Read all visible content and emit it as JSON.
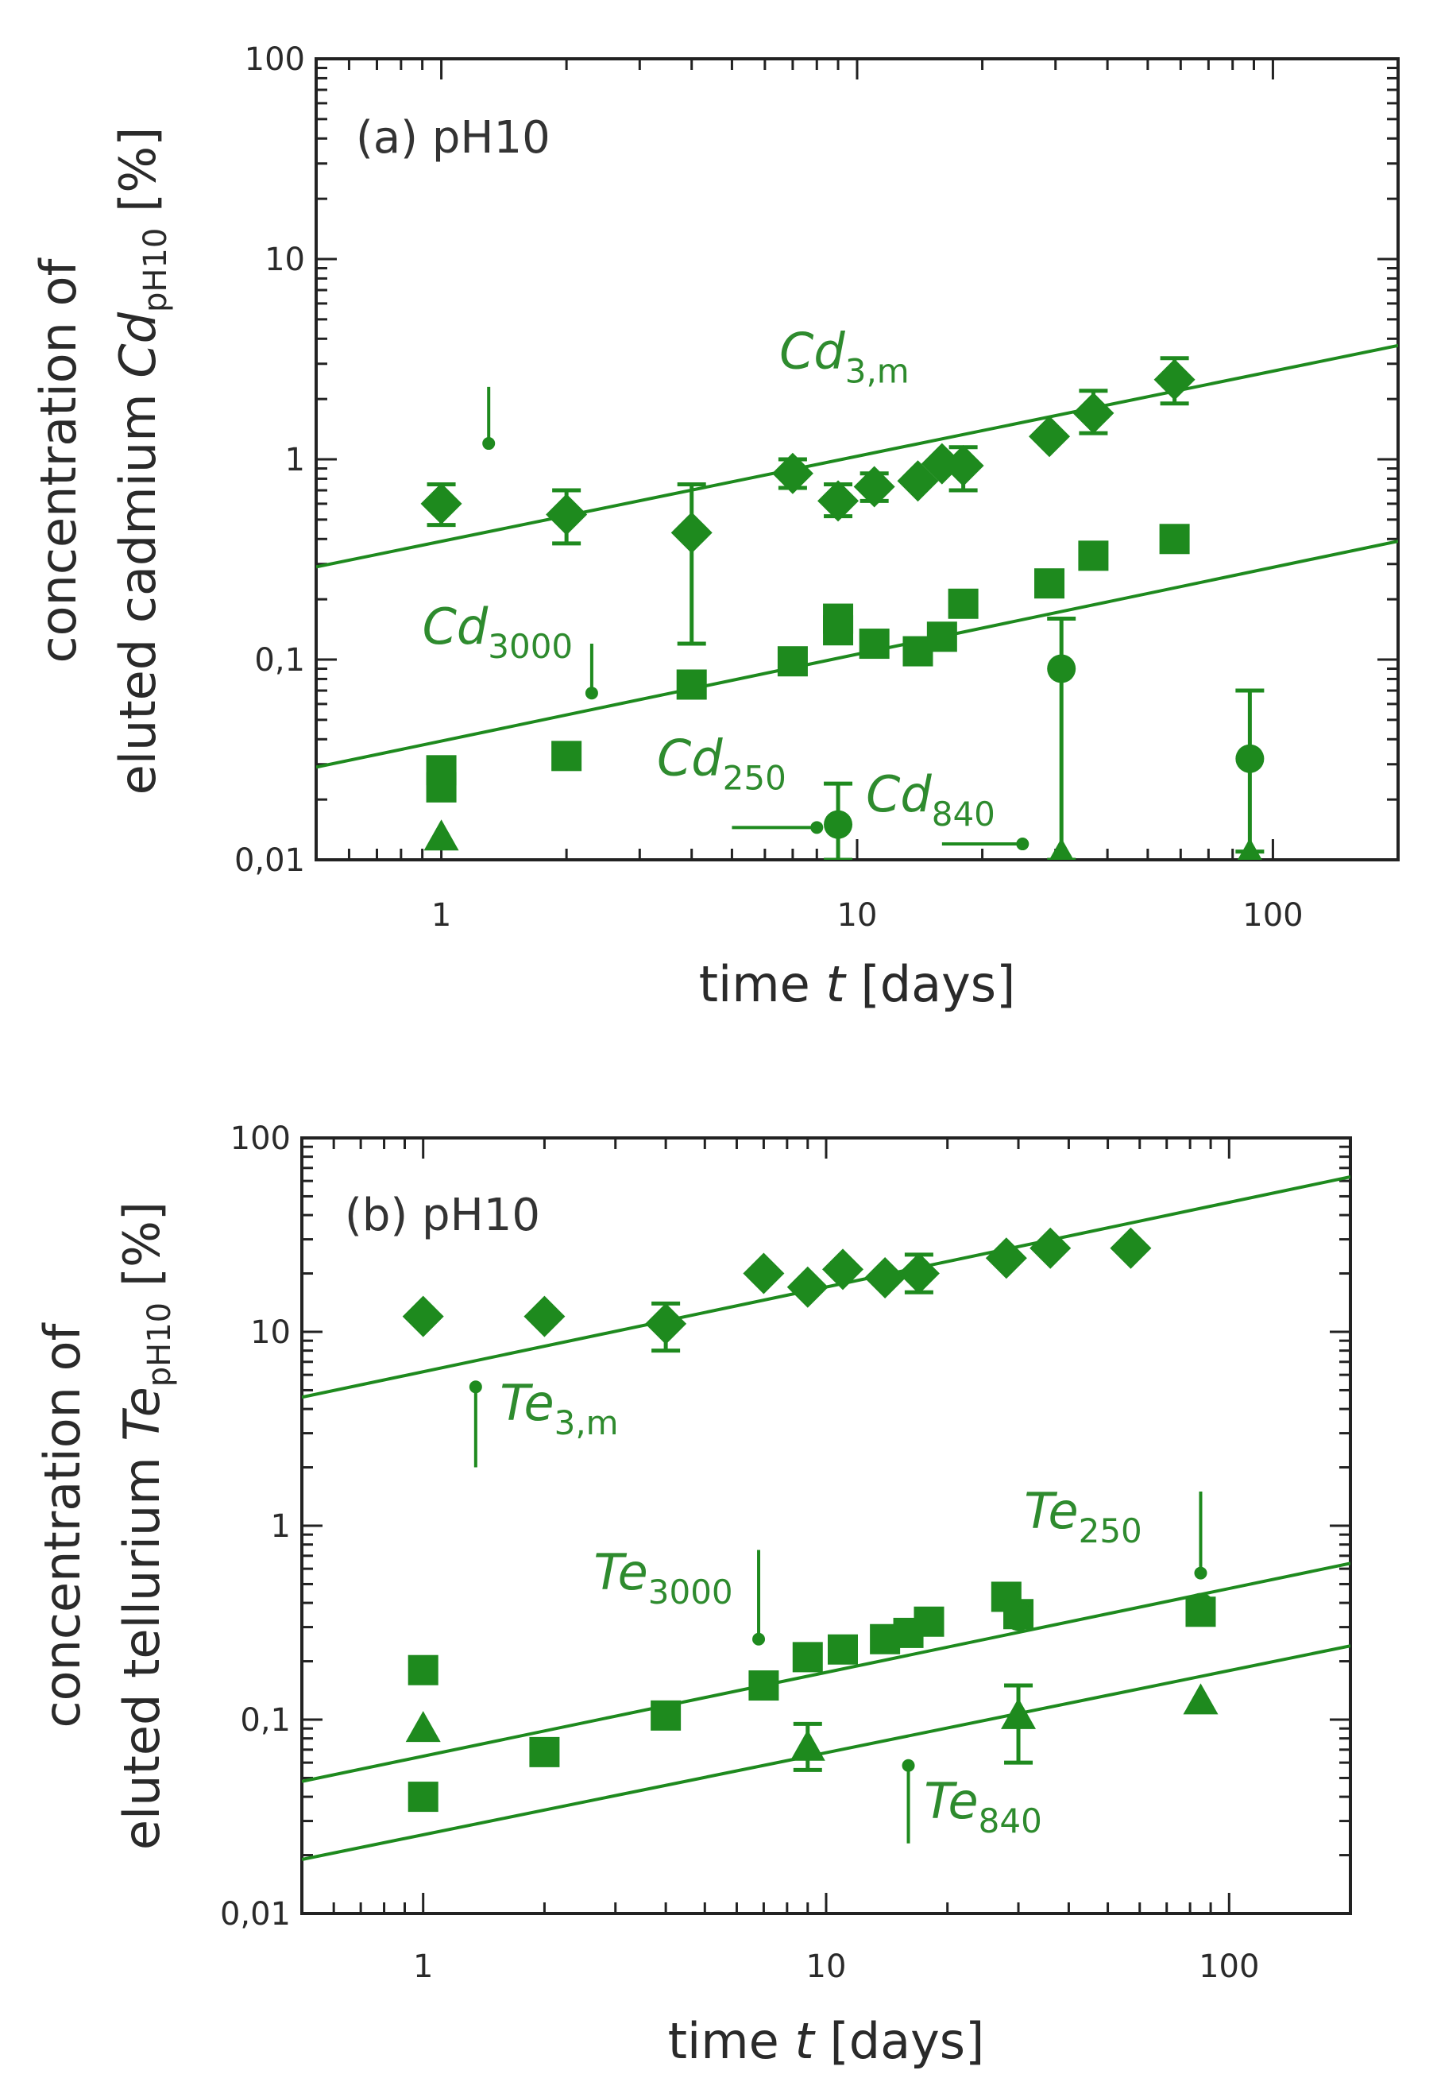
{
  "colors": {
    "series": "#1e8a1e",
    "annotation": "#2e8b2e",
    "axis": "#222222",
    "text": "#2a2a2a"
  },
  "chart_data": [
    {
      "type": "scatter",
      "scale": "log-log",
      "title": "(a) pH10",
      "xlabel": "time t [days]",
      "ylabel_line1": "concentration of",
      "ylabel_line2_prefix": "eluted cadmium Cd",
      "ylabel_line2_sub": "pH10",
      "ylabel_line2_suffix": " [%]",
      "xlim": [
        0.5,
        200
      ],
      "ylim": [
        0.01,
        100
      ],
      "xticks": [
        1,
        10,
        100
      ],
      "xtick_labels": [
        "1",
        "10",
        "100"
      ],
      "yticks": [
        0.01,
        0.1,
        1,
        10,
        100
      ],
      "ytick_labels": [
        "0,01",
        "0,1",
        "1",
        "10",
        "100"
      ],
      "series": [
        {
          "name": "Cd3,m",
          "marker": "diamond",
          "points": [
            {
              "x": 1.0,
              "y": 0.6,
              "lo": 0.47,
              "hi": 0.75
            },
            {
              "x": 2.0,
              "y": 0.53,
              "lo": 0.38,
              "hi": 0.7
            },
            {
              "x": 4.0,
              "y": 0.43,
              "lo": 0.12,
              "hi": 0.75
            },
            {
              "x": 7.0,
              "y": 0.85,
              "lo": 0.72,
              "hi": 1.0
            },
            {
              "x": 9.0,
              "y": 0.62,
              "lo": 0.52,
              "hi": 0.75
            },
            {
              "x": 11.0,
              "y": 0.73,
              "lo": 0.62,
              "hi": 0.85
            },
            {
              "x": 14.0,
              "y": 0.78
            },
            {
              "x": 16.0,
              "y": 0.95
            },
            {
              "x": 18.0,
              "y": 0.93,
              "lo": 0.7,
              "hi": 1.15
            },
            {
              "x": 29.0,
              "y": 1.3
            },
            {
              "x": 37.0,
              "y": 1.7,
              "lo": 1.35,
              "hi": 2.2
            },
            {
              "x": 58.0,
              "y": 2.5,
              "lo": 1.9,
              "hi": 3.2
            }
          ]
        },
        {
          "name": "Cd3000",
          "marker": "square",
          "points": [
            {
              "x": 1.0,
              "y": 0.028
            },
            {
              "x": 1.0,
              "y": 0.023
            },
            {
              "x": 2.0,
              "y": 0.033
            },
            {
              "x": 4.0,
              "y": 0.075
            },
            {
              "x": 7.0,
              "y": 0.098
            },
            {
              "x": 9.0,
              "y": 0.16
            },
            {
              "x": 9.0,
              "y": 0.14
            },
            {
              "x": 11.0,
              "y": 0.12
            },
            {
              "x": 14.0,
              "y": 0.11
            },
            {
              "x": 16.0,
              "y": 0.13
            },
            {
              "x": 18.0,
              "y": 0.19
            },
            {
              "x": 29.0,
              "y": 0.24
            },
            {
              "x": 37.0,
              "y": 0.33
            },
            {
              "x": 58.0,
              "y": 0.4
            }
          ]
        },
        {
          "name": "Cd250",
          "marker": "circle",
          "points": [
            {
              "x": 9.0,
              "y": 0.015,
              "lo": 0.01,
              "hi": 0.024
            },
            {
              "x": 31.0,
              "y": 0.09,
              "lo": 0.01,
              "hi": 0.16
            },
            {
              "x": 88.0,
              "y": 0.032,
              "lo": 0.011,
              "hi": 0.07
            }
          ]
        },
        {
          "name": "Cd840",
          "marker": "triangle",
          "points": [
            {
              "x": 1.0,
              "y": 0.013
            },
            {
              "x": 31.0,
              "y": 0.0105
            },
            {
              "x": 88.0,
              "y": 0.0105
            }
          ]
        }
      ],
      "fits": [
        {
          "name": "Cd3,m fit",
          "x": [
            0.5,
            200
          ],
          "y": [
            0.29,
            3.7
          ]
        },
        {
          "name": "Cd3000 fit",
          "x": [
            0.5,
            200
          ],
          "y": [
            0.029,
            0.39
          ]
        }
      ],
      "detection_limits": [
        {
          "x": 1.3,
          "y": 1.2,
          "hi": 2.3
        },
        {
          "x": 2.3,
          "y": 0.068,
          "hi": 0.12
        },
        {
          "x": 8.0,
          "y": 0.0145,
          "lo_x": 5.0
        },
        {
          "x": 25.0,
          "y": 0.012,
          "lo_x": 16.0
        }
      ],
      "annotations": [
        {
          "base": "Cd",
          "sub": "3,m",
          "x": 6.5,
          "y": 2.85
        },
        {
          "base": "Cd",
          "sub": "3000",
          "x": 0.9,
          "y": 0.12
        },
        {
          "base": "Cd",
          "sub": "250",
          "x": 3.3,
          "y": 0.0265
        },
        {
          "base": "Cd",
          "sub": "840",
          "x": 10.5,
          "y": 0.0175
        }
      ]
    },
    {
      "type": "scatter",
      "scale": "log-log",
      "title": "(b) pH10",
      "xlabel": "time t [days]",
      "ylabel_line1": "concentration of",
      "ylabel_line2_prefix": "eluted tellurium Te",
      "ylabel_line2_sub": "pH10",
      "ylabel_line2_suffix": " [%]",
      "xlim": [
        0.5,
        200
      ],
      "ylim": [
        0.01,
        100
      ],
      "xticks": [
        1,
        10,
        100
      ],
      "xtick_labels": [
        "1",
        "10",
        "100"
      ],
      "yticks": [
        0.01,
        0.1,
        1,
        10,
        100
      ],
      "ytick_labels": [
        "0,01",
        "0,1",
        "1",
        "10",
        "100"
      ],
      "series": [
        {
          "name": "Te3,m",
          "marker": "diamond",
          "points": [
            {
              "x": 1.0,
              "y": 12
            },
            {
              "x": 2.0,
              "y": 12
            },
            {
              "x": 4.0,
              "y": 11,
              "lo": 8,
              "hi": 14
            },
            {
              "x": 7.0,
              "y": 20
            },
            {
              "x": 9.0,
              "y": 17
            },
            {
              "x": 11.0,
              "y": 21
            },
            {
              "x": 14.0,
              "y": 19
            },
            {
              "x": 17.0,
              "y": 20,
              "lo": 16,
              "hi": 25
            },
            {
              "x": 28.0,
              "y": 24
            },
            {
              "x": 36.0,
              "y": 27
            },
            {
              "x": 57.0,
              "y": 27
            }
          ]
        },
        {
          "name": "Te3000",
          "marker": "square",
          "points": [
            {
              "x": 1.0,
              "y": 0.18
            },
            {
              "x": 1.0,
              "y": 0.04
            },
            {
              "x": 2.0,
              "y": 0.068
            },
            {
              "x": 4.0,
              "y": 0.105
            },
            {
              "x": 7.0,
              "y": 0.15
            },
            {
              "x": 9.0,
              "y": 0.21
            },
            {
              "x": 11.0,
              "y": 0.23
            },
            {
              "x": 14.0,
              "y": 0.26
            },
            {
              "x": 16.0,
              "y": 0.28
            },
            {
              "x": 18.0,
              "y": 0.32
            },
            {
              "x": 28.0,
              "y": 0.43
            },
            {
              "x": 30.0,
              "y": 0.35
            },
            {
              "x": 85.0,
              "y": 0.36
            }
          ]
        },
        {
          "name": "Te840",
          "marker": "triangle",
          "points": [
            {
              "x": 1.0,
              "y": 0.09
            },
            {
              "x": 9.0,
              "y": 0.072,
              "lo": 0.055,
              "hi": 0.095
            },
            {
              "x": 30.0,
              "y": 0.105,
              "lo": 0.06,
              "hi": 0.15
            },
            {
              "x": 85.0,
              "y": 0.125
            }
          ]
        },
        {
          "name": "Te250",
          "marker": "circle",
          "points": [
            {
              "x": 30.0,
              "y": 0.34
            },
            {
              "x": 85.0,
              "y": 0.38
            }
          ]
        }
      ],
      "fits": [
        {
          "name": "Te3,m fit",
          "x": [
            0.5,
            200
          ],
          "y": [
            4.6,
            63
          ]
        },
        {
          "name": "Te3000 fit",
          "x": [
            0.5,
            200
          ],
          "y": [
            0.048,
            0.64
          ]
        },
        {
          "name": "Te840 fit",
          "x": [
            0.5,
            200
          ],
          "y": [
            0.019,
            0.24
          ]
        }
      ],
      "detection_limits": [
        {
          "x": 1.35,
          "y": 5.2,
          "lo": 2.0
        },
        {
          "x": 6.8,
          "y": 0.26,
          "hi": 0.75
        },
        {
          "x": 16.0,
          "y": 0.058,
          "lo": 0.023
        },
        {
          "x": 85.0,
          "y": 0.57,
          "hi": 1.5
        }
      ],
      "annotations": [
        {
          "base": "Te",
          "sub": "3,m",
          "x": 1.55,
          "y": 3.5
        },
        {
          "base": "Te",
          "sub": "3000",
          "x": 2.65,
          "y": 0.47
        },
        {
          "base": "Te",
          "sub": "250",
          "x": 31.0,
          "y": 0.97
        },
        {
          "base": "Te",
          "sub": "840",
          "x": 17.5,
          "y": 0.031
        }
      ]
    }
  ]
}
